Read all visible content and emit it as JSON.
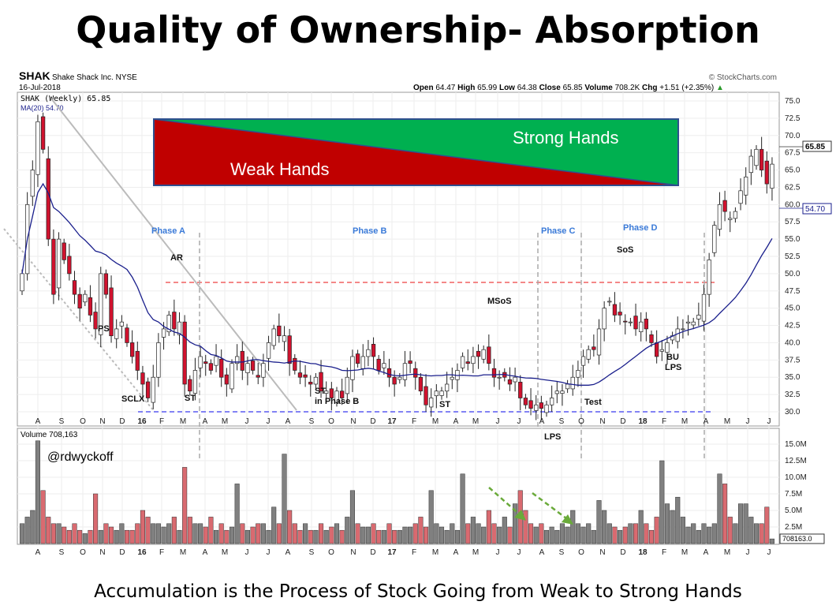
{
  "title": "Quality of Ownership- Absorption",
  "caption": "Accumulation is the Process of Stock Going from Weak to Strong Hands",
  "header": {
    "symbol": "SHAK",
    "company": "Shake Shack Inc.  NYSE",
    "date": "16-Jul-2018",
    "source": "© StockCharts.com",
    "open_label": "Open",
    "open": "64.47",
    "high_label": "High",
    "high": "65.99",
    "low_label": "Low",
    "low": "64.38",
    "close_label": "Close",
    "close": "65.85",
    "volume_label": "Volume",
    "volume": "708.2K",
    "chg_label": "Chg",
    "chg": "+1.51 (+2.35%)",
    "legend_price": "SHAK (Weekly) 65.85",
    "legend_ma": "MA(20) 54.70",
    "legend_volume": "Volume 708,163"
  },
  "overlay": {
    "strong": "Strong Hands",
    "weak": "Weak Hands",
    "handle": "@rdwyckoff"
  },
  "annotations": {
    "phase_a": "Phase A",
    "phase_b": "Phase B",
    "phase_c": "Phase C",
    "phase_d": "Phase D",
    "ar": "AR",
    "ps": "PS",
    "sclx": "SCLX",
    "st1": "ST",
    "st2": "ST",
    "st2b": "in Phase B",
    "st3": "ST",
    "msos": "MSoS",
    "lps": "LPS",
    "test": "Test",
    "sos": "SoS",
    "bu": "BU",
    "lps2": "LPS"
  },
  "tags": {
    "price": "65.85",
    "ma": "54.70",
    "volume": "708163.0"
  },
  "colors": {
    "up": "#ffffff",
    "down": "#d0122e",
    "vol_up": "#808080",
    "vol_down": "#d96a70",
    "ma": "#1a1f8c",
    "green": "#00b050",
    "red": "#c00000"
  },
  "chart_data": {
    "type": "candlestick",
    "title": "SHAK (Weekly)",
    "ylim": [
      30,
      75
    ],
    "yticks": [
      "75.0",
      "72.5",
      "70.0",
      "67.5",
      "65.0",
      "62.5",
      "60.0",
      "57.5",
      "55.0",
      "52.5",
      "50.0",
      "47.5",
      "45.0",
      "42.5",
      "40.0",
      "37.5",
      "35.0",
      "32.5",
      "30.0"
    ],
    "vticks": [
      "15.0M",
      "12.5M",
      "10.0M",
      "7.5M",
      "5.0M",
      "2.5M"
    ],
    "xticks": [
      "A",
      "S",
      "O",
      "N",
      "D",
      "16",
      "F",
      "M",
      "A",
      "M",
      "J",
      "J",
      "A",
      "S",
      "O",
      "N",
      "D",
      "17",
      "F",
      "M",
      "A",
      "M",
      "J",
      "J",
      "A",
      "S",
      "O",
      "N",
      "D",
      "18",
      "F",
      "M",
      "A",
      "M",
      "J",
      "J"
    ],
    "ma_period": 20,
    "closes": [
      50,
      60,
      65,
      72,
      68,
      55,
      47,
      55,
      52,
      50,
      47,
      45,
      47,
      44,
      42,
      50,
      47,
      41,
      42,
      43,
      40,
      38,
      36,
      34,
      32,
      35,
      40,
      42,
      44,
      42,
      43,
      34,
      33,
      36,
      38,
      37,
      36,
      38,
      35,
      34,
      37,
      38,
      36,
      37,
      36,
      35,
      37,
      40,
      42,
      41,
      41,
      37,
      36,
      35,
      35,
      34,
      35,
      33,
      33,
      32,
      33,
      32,
      35,
      38,
      37,
      38,
      39,
      38,
      36,
      37,
      35,
      34,
      35,
      37,
      37,
      35,
      33,
      31,
      32,
      33,
      33,
      34,
      35,
      36,
      38,
      37,
      38,
      38,
      39,
      37,
      35,
      35,
      35,
      34,
      35,
      32,
      31,
      30.5,
      31,
      30.5,
      31,
      32,
      33,
      33,
      34,
      35,
      36,
      38,
      39,
      39,
      42,
      45,
      46,
      44,
      44,
      43,
      43,
      42,
      43,
      42,
      40,
      38,
      39,
      40,
      41,
      42,
      42,
      43,
      43,
      44,
      47,
      52,
      57,
      60,
      59,
      58,
      59,
      62,
      64,
      67,
      68,
      65,
      63,
      65.85
    ],
    "volumes_m": [
      3,
      4,
      5,
      15.5,
      8,
      4,
      3,
      3,
      2.5,
      2,
      3,
      2,
      1.5,
      2,
      7.5,
      2,
      3,
      2.5,
      2,
      3,
      2,
      2,
      3,
      5,
      4,
      3,
      3,
      2.5,
      3,
      4,
      2,
      11.5,
      4,
      3,
      3,
      2.5,
      4,
      2,
      3,
      2,
      2.5,
      9,
      3,
      2,
      2.5,
      3,
      3,
      2,
      5.5,
      3,
      13.5,
      5,
      3,
      2,
      3,
      2,
      2,
      3,
      2,
      2.5,
      3,
      2,
      4,
      8,
      3,
      2.5,
      2.5,
      3,
      2,
      2,
      3,
      2,
      2,
      2.5,
      2.5,
      3,
      4,
      2.5,
      8,
      3,
      2.5,
      2,
      3,
      2,
      10.5,
      3,
      4,
      3,
      2.5,
      5,
      3,
      2.5,
      4,
      2.5,
      6,
      8,
      5,
      3,
      2.5,
      3,
      2,
      2.5,
      2,
      3,
      2.5,
      5,
      3,
      2.5,
      3,
      2,
      6.5,
      5,
      3,
      2.5,
      2,
      2.5,
      3,
      3,
      5,
      3,
      2,
      4,
      12.5,
      6,
      5,
      7,
      4,
      2.5,
      3,
      2,
      3,
      2.5,
      3,
      10.5,
      9,
      4,
      3,
      6,
      6,
      4,
      3,
      3,
      5.5,
      0.7
    ]
  }
}
